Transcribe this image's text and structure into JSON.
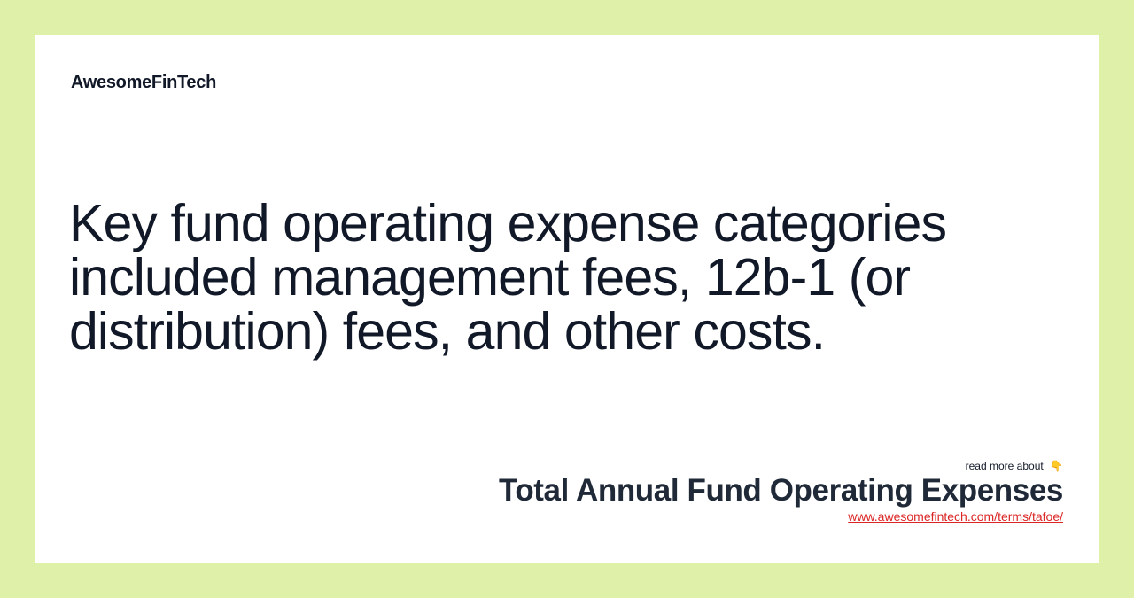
{
  "brand": {
    "name": "AwesomeFinTech"
  },
  "main": {
    "quote": "Key fund operating expense categories included management fees, 12b-1 (or distribution) fees, and other costs."
  },
  "footer": {
    "read_more_label": "read more about",
    "pointer_icon": "👇",
    "term_title": "Total Annual Fund Operating Expenses",
    "term_url": "www.awesomefintech.com/terms/tafoe/"
  },
  "colors": {
    "background": "#dff0a8",
    "card": "#ffffff",
    "text": "#111827",
    "link": "#dc2626"
  }
}
